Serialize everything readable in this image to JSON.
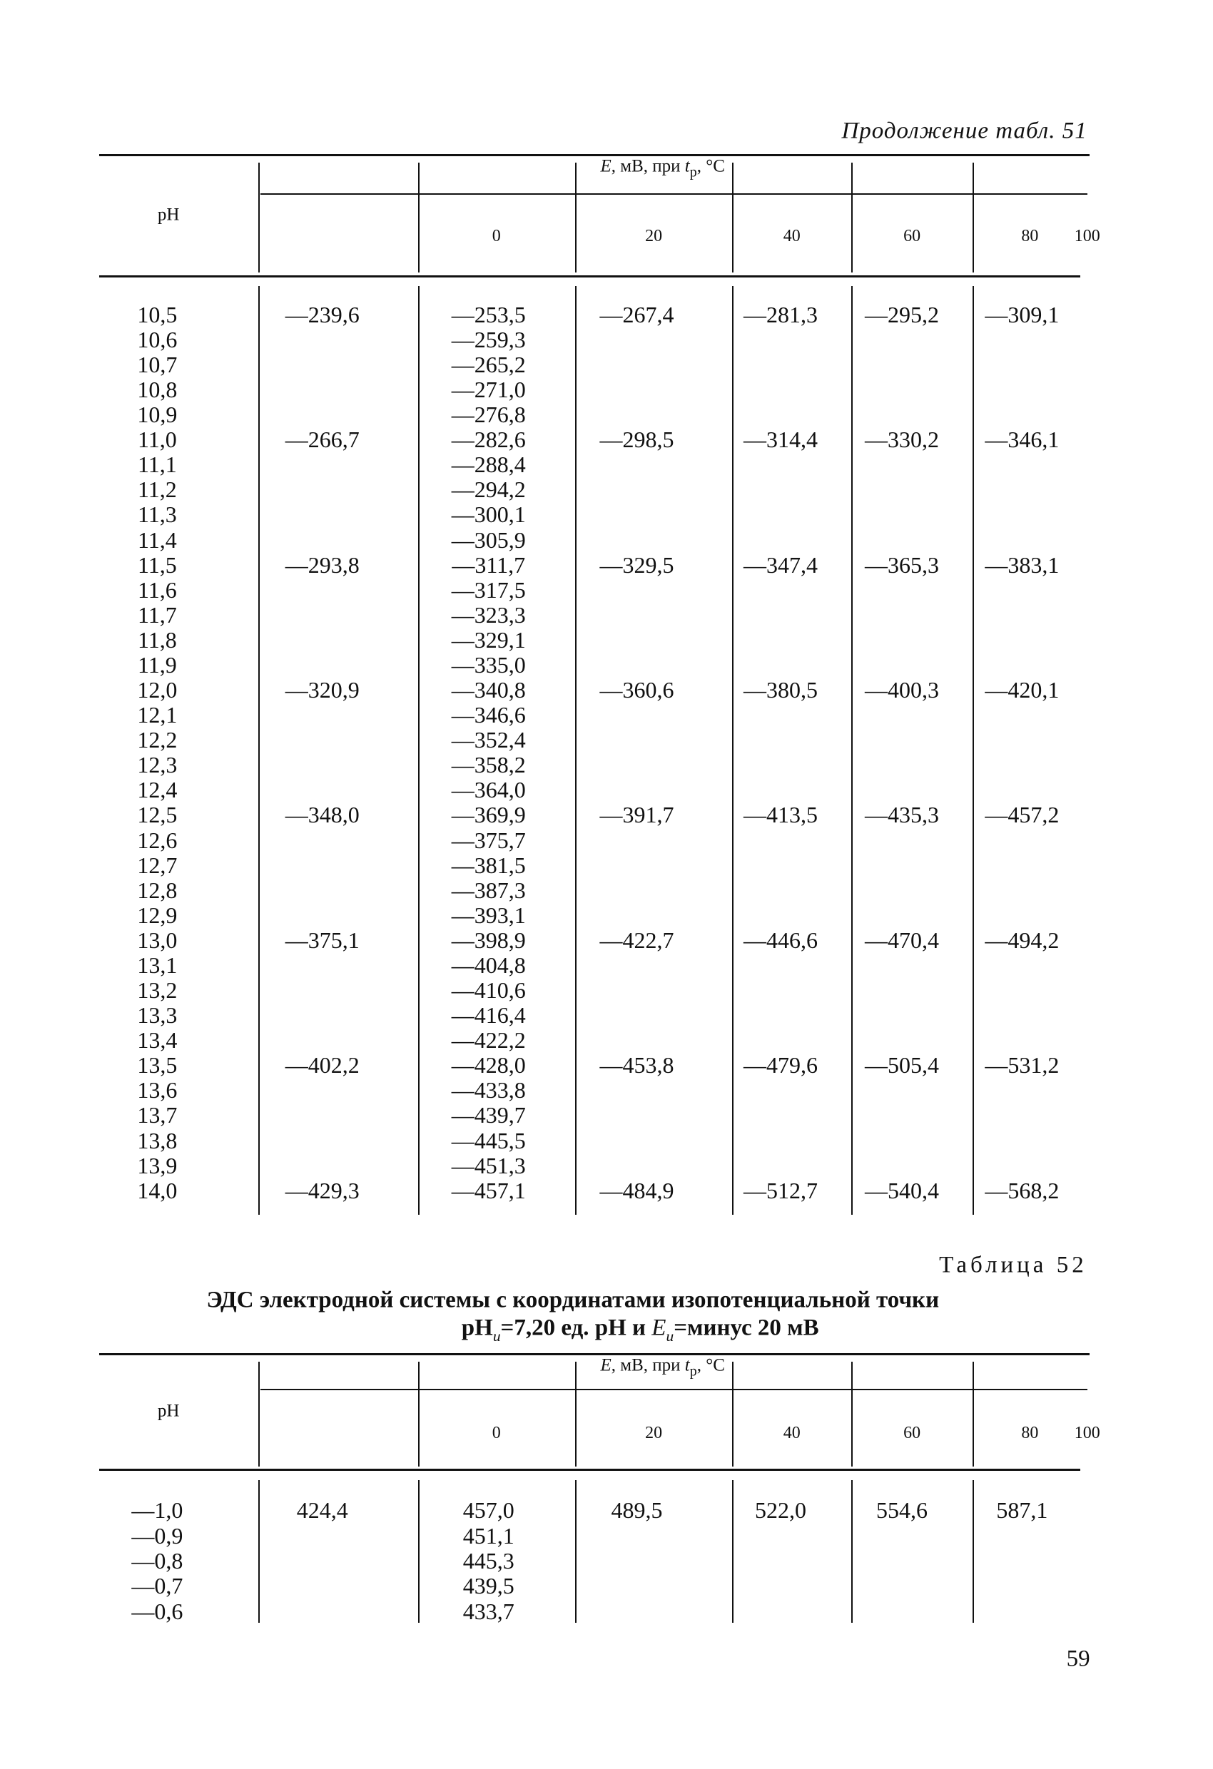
{
  "continuation": "Продолжение табл. 51",
  "table51": {
    "row_header": "pH",
    "group_header": [
      "E",
      ", мВ, при ",
      "t",
      "р",
      ", °С"
    ],
    "columns": [
      "0",
      "20",
      "40",
      "60",
      "80",
      "100"
    ],
    "rows": [
      [
        "10,5",
        "—239,6",
        "—253,5",
        "—267,4",
        "—281,3",
        "—295,2",
        "—309,1"
      ],
      [
        "10,6",
        null,
        "—259,3",
        null,
        null,
        null,
        null
      ],
      [
        "10,7",
        null,
        "—265,2",
        null,
        null,
        null,
        null
      ],
      [
        "10,8",
        null,
        "—271,0",
        null,
        null,
        null,
        null
      ],
      [
        "10,9",
        null,
        "—276,8",
        null,
        null,
        null,
        null
      ],
      [
        "11,0",
        "—266,7",
        "—282,6",
        "—298,5",
        "—314,4",
        "—330,2",
        "—346,1"
      ],
      [
        "11,1",
        null,
        "—288,4",
        null,
        null,
        null,
        null
      ],
      [
        "11,2",
        null,
        "—294,2",
        null,
        null,
        null,
        null
      ],
      [
        "11,3",
        null,
        "—300,1",
        null,
        null,
        null,
        null
      ],
      [
        "11,4",
        null,
        "—305,9",
        null,
        null,
        null,
        null
      ],
      [
        "11,5",
        "—293,8",
        "—311,7",
        "—329,5",
        "—347,4",
        "—365,3",
        "—383,1"
      ],
      [
        "11,6",
        null,
        "—317,5",
        null,
        null,
        null,
        null
      ],
      [
        "11,7",
        null,
        "—323,3",
        null,
        null,
        null,
        null
      ],
      [
        "11,8",
        null,
        "—329,1",
        null,
        null,
        null,
        null
      ],
      [
        "11,9",
        null,
        "—335,0",
        null,
        null,
        null,
        null
      ],
      [
        "12,0",
        "—320,9",
        "—340,8",
        "—360,6",
        "—380,5",
        "—400,3",
        "—420,1"
      ],
      [
        "12,1",
        null,
        "—346,6",
        null,
        null,
        null,
        null
      ],
      [
        "12,2",
        null,
        "—352,4",
        null,
        null,
        null,
        null
      ],
      [
        "12,3",
        null,
        "—358,2",
        null,
        null,
        null,
        null
      ],
      [
        "12,4",
        null,
        "—364,0",
        null,
        null,
        null,
        null
      ],
      [
        "12,5",
        "—348,0",
        "—369,9",
        "—391,7",
        "—413,5",
        "—435,3",
        "—457,2"
      ],
      [
        "12,6",
        null,
        "—375,7",
        null,
        null,
        null,
        null
      ],
      [
        "12,7",
        null,
        "—381,5",
        null,
        null,
        null,
        null
      ],
      [
        "12,8",
        null,
        "—387,3",
        null,
        null,
        null,
        null
      ],
      [
        "12,9",
        null,
        "—393,1",
        null,
        null,
        null,
        null
      ],
      [
        "13,0",
        "—375,1",
        "—398,9",
        "—422,7",
        "—446,6",
        "—470,4",
        "—494,2"
      ],
      [
        "13,1",
        null,
        "—404,8",
        null,
        null,
        null,
        null
      ],
      [
        "13,2",
        null,
        "—410,6",
        null,
        null,
        null,
        null
      ],
      [
        "13,3",
        null,
        "—416,4",
        null,
        null,
        null,
        null
      ],
      [
        "13,4",
        null,
        "—422,2",
        null,
        null,
        null,
        null
      ],
      [
        "13,5",
        "—402,2",
        "—428,0",
        "—453,8",
        "—479,6",
        "—505,4",
        "—531,2"
      ],
      [
        "13,6",
        null,
        "—433,8",
        null,
        null,
        null,
        null
      ],
      [
        "13,7",
        null,
        "—439,7",
        null,
        null,
        null,
        null
      ],
      [
        "13,8",
        null,
        "—445,5",
        null,
        null,
        null,
        null
      ],
      [
        "13,9",
        null,
        "—451,3",
        null,
        null,
        null,
        null
      ],
      [
        "14,0",
        "—429,3",
        "—457,1",
        "—484,9",
        "—512,7",
        "—540,4",
        "—568,2"
      ]
    ]
  },
  "table52": {
    "label": "Таблица 52",
    "title_line1": "ЭДС электродной системы с координатами изопотенциальной точки",
    "title_line2": [
      "pH",
      "и",
      "=7,20 ед. pH и ",
      "E",
      "и",
      "=минус 20 мВ"
    ],
    "row_header": "pH",
    "group_header": [
      "E",
      ", мВ, при ",
      "t",
      "р",
      ", °С"
    ],
    "columns": [
      "0",
      "20",
      "40",
      "60",
      "80",
      "100"
    ],
    "rows": [
      [
        "—1,0",
        "424,4",
        "457,0",
        "489,5",
        "522,0",
        "554,6",
        "587,1"
      ],
      [
        "—0,9",
        null,
        "451,1",
        null,
        null,
        null,
        null
      ],
      [
        "—0,8",
        null,
        "445,3",
        null,
        null,
        null,
        null
      ],
      [
        "—0,7",
        null,
        "439,5",
        null,
        null,
        null,
        null
      ],
      [
        "—0,6",
        null,
        "433,7",
        null,
        null,
        null,
        null
      ]
    ]
  },
  "page_number": "59"
}
